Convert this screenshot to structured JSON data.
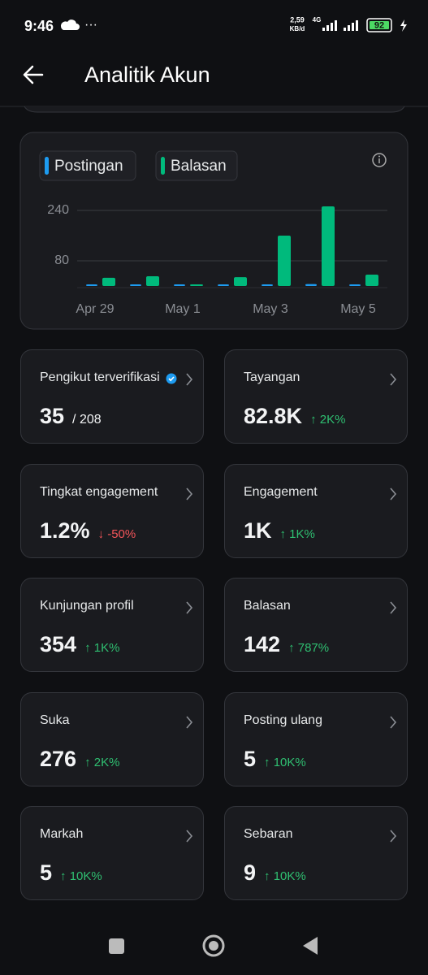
{
  "status_bar": {
    "time": "9:46",
    "speed": "2,59",
    "speed_unit": "KB/d",
    "network": "4G",
    "battery": "92"
  },
  "header": {
    "title": "Analitik Akun"
  },
  "chart_data": {
    "type": "bar",
    "categories": [
      "Apr 29",
      null,
      "May 1",
      null,
      "May 3",
      null,
      "May 5"
    ],
    "series": [
      {
        "name": "Postingan",
        "color": "#1d9bf0",
        "values": [
          4,
          1,
          1,
          0,
          3,
          6,
          0
        ]
      },
      {
        "name": "Balasan",
        "color": "#00ba7c",
        "values": [
          26,
          31,
          3,
          28,
          160,
          253,
          36
        ]
      }
    ],
    "ylim": [
      0,
      260
    ],
    "yticks": [
      80,
      240
    ],
    "grid": true
  },
  "cards": [
    {
      "label": "Pengikut terverifikasi",
      "value": "35",
      "suffix": "/ 208",
      "verified": true
    },
    {
      "label": "Tayangan",
      "value": "82.8K",
      "change": "↑ 2K%",
      "trend": "up"
    },
    {
      "label": "Tingkat engagement",
      "value": "1.2%",
      "change": "↓ -50%",
      "trend": "down"
    },
    {
      "label": "Engagement",
      "value": "1K",
      "change": "↑ 1K%",
      "trend": "up"
    },
    {
      "label": "Kunjungan profil",
      "value": "354",
      "change": "↑ 1K%",
      "trend": "up"
    },
    {
      "label": "Balasan",
      "value": "142",
      "change": "↑ 787%",
      "trend": "up"
    },
    {
      "label": "Suka",
      "value": "276",
      "change": "↑ 2K%",
      "trend": "up"
    },
    {
      "label": "Posting ulang",
      "value": "5",
      "change": "↑ 10K%",
      "trend": "up"
    },
    {
      "label": "Markah",
      "value": "5",
      "change": "↑ 10K%",
      "trend": "up"
    },
    {
      "label": "Sebaran",
      "value": "9",
      "change": "↑ 10K%",
      "trend": "up"
    }
  ]
}
